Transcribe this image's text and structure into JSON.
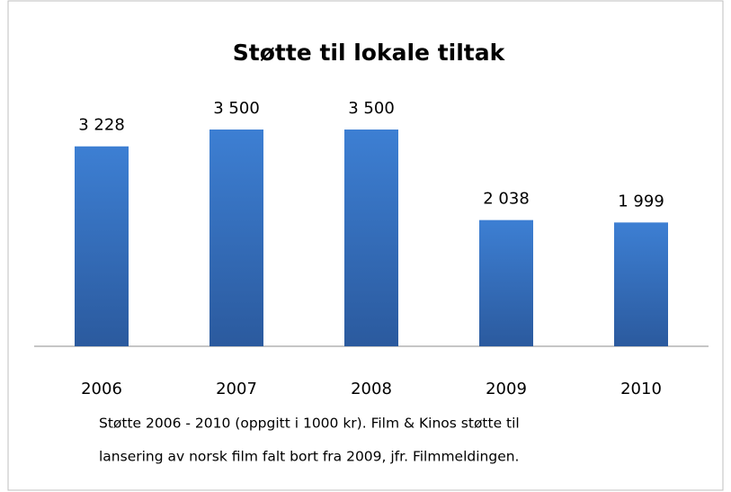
{
  "chart_data": {
    "type": "bar",
    "title": "Støtte til lokale tiltak",
    "categories": [
      "2006",
      "2007",
      "2008",
      "2009",
      "2010"
    ],
    "values": [
      3228,
      3500,
      3500,
      2038,
      1999
    ],
    "value_labels": [
      "3 228",
      "3 500",
      "3 500",
      "2 038",
      "1 999"
    ],
    "color": "#3a78c8",
    "caption": [
      "Støtte 2006 - 2010 (oppgitt i 1000 kr). Film & Kinos  støtte til",
      "lansering av norsk film falt bort fra 2009, jfr. Filmmeldingen."
    ]
  }
}
